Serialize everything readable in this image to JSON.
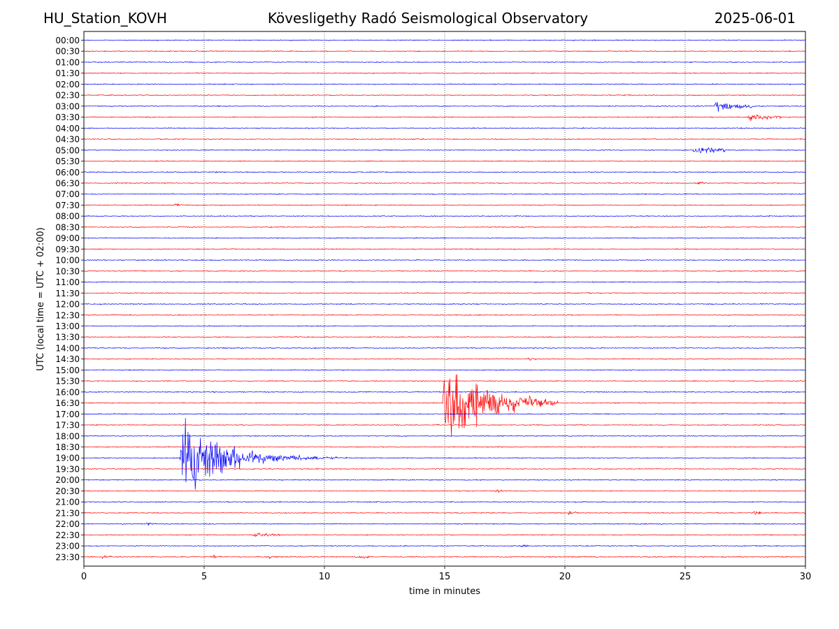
{
  "header": {
    "station": "HU_Station_KOVH",
    "observatory": "Kövesligethy Radó Seismological Observatory",
    "date": "2025-06-01"
  },
  "chart_data": {
    "type": "line",
    "title": "Kövesligethy Radó Seismological Observatory",
    "xlabel": "time in minutes",
    "ylabel": "UTC (local time = UTC + 02:00)",
    "xlim": [
      0,
      30
    ],
    "x_ticks": [
      0,
      5,
      10,
      15,
      20,
      25,
      30
    ],
    "grid": "vertical dotted at x ticks",
    "row_labels": [
      "00:00",
      "00:30",
      "01:00",
      "01:30",
      "02:00",
      "02:30",
      "03:00",
      "03:30",
      "04:00",
      "04:30",
      "05:00",
      "05:30",
      "06:00",
      "06:30",
      "07:00",
      "07:30",
      "08:00",
      "08:30",
      "09:00",
      "09:30",
      "10:00",
      "10:30",
      "11:00",
      "11:30",
      "12:00",
      "12:30",
      "13:00",
      "13:30",
      "14:00",
      "14:30",
      "15:00",
      "15:30",
      "16:00",
      "16:30",
      "17:00",
      "17:30",
      "18:00",
      "18:30",
      "19:00",
      "19:30",
      "20:00",
      "20:30",
      "21:00",
      "21:30",
      "22:00",
      "22:30",
      "23:00",
      "23:30"
    ],
    "series_colors": [
      "#0000ff",
      "#ff0000"
    ],
    "events": [
      {
        "row": "03:00",
        "start_min": 26.2,
        "duration_min": 1.6,
        "amplitude": 0.75,
        "decay": 0.55
      },
      {
        "row": "03:30",
        "start_min": 27.6,
        "duration_min": 1.4,
        "amplitude": 0.45,
        "decay": 0.6
      },
      {
        "row": "05:00",
        "start_min": 25.3,
        "duration_min": 1.4,
        "amplitude": 0.5,
        "decay": 0.7
      },
      {
        "row": "06:30",
        "start_min": 25.4,
        "duration_min": 0.4,
        "amplitude": 0.2,
        "decay": 0.5
      },
      {
        "row": "07:30",
        "start_min": 3.7,
        "duration_min": 0.4,
        "amplitude": 0.2,
        "decay": 0.5
      },
      {
        "row": "14:30",
        "start_min": 18.4,
        "duration_min": 0.4,
        "amplitude": 0.25,
        "decay": 0.5
      },
      {
        "row": "16:30",
        "start_min": 14.9,
        "duration_min": 4.8,
        "amplitude": 5.5,
        "decay": 0.35
      },
      {
        "row": "19:00",
        "start_min": 4.0,
        "duration_min": 7.0,
        "amplitude": 5.5,
        "decay": 0.22
      },
      {
        "row": "20:30",
        "start_min": 17.0,
        "duration_min": 0.5,
        "amplitude": 0.2,
        "decay": 0.5
      },
      {
        "row": "21:30",
        "start_min": 20.1,
        "duration_min": 0.5,
        "amplitude": 0.25,
        "decay": 0.5
      },
      {
        "row": "21:30",
        "start_min": 27.8,
        "duration_min": 0.5,
        "amplitude": 0.25,
        "decay": 0.5
      },
      {
        "row": "22:00",
        "start_min": 2.5,
        "duration_min": 0.5,
        "amplitude": 0.25,
        "decay": 0.5
      },
      {
        "row": "22:30",
        "start_min": 7.0,
        "duration_min": 1.2,
        "amplitude": 0.35,
        "decay": 0.5
      },
      {
        "row": "23:00",
        "start_min": 18.0,
        "duration_min": 0.5,
        "amplitude": 0.25,
        "decay": 0.5
      },
      {
        "row": "23:30",
        "start_min": 0.7,
        "duration_min": 0.5,
        "amplitude": 0.2,
        "decay": 0.5
      },
      {
        "row": "23:30",
        "start_min": 5.2,
        "duration_min": 0.5,
        "amplitude": 0.25,
        "decay": 0.5
      },
      {
        "row": "23:30",
        "start_min": 7.5,
        "duration_min": 0.6,
        "amplitude": 0.25,
        "decay": 0.5
      },
      {
        "row": "23:30",
        "start_min": 11.4,
        "duration_min": 0.5,
        "amplitude": 0.2,
        "decay": 0.5
      }
    ]
  }
}
